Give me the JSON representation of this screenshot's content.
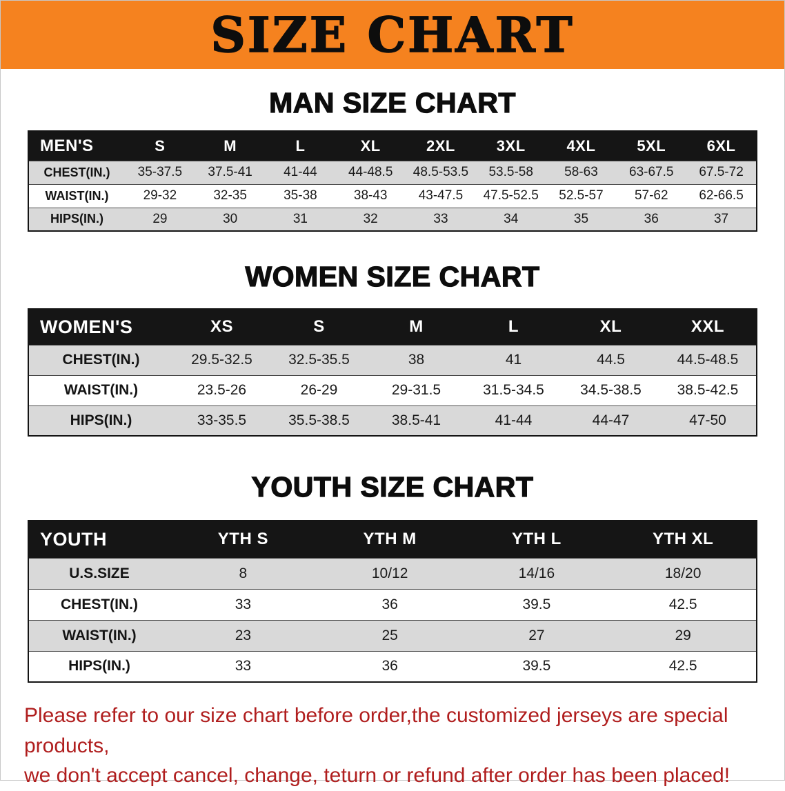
{
  "colors": {
    "banner_bg": "#F5821F",
    "header_bg": "#151515",
    "row_alt_bg": "#D9D9D9",
    "disclaimer_text": "#B01E1E"
  },
  "banner": {
    "title": "SIZE CHART"
  },
  "sections": [
    {
      "heading": "MAN SIZE CHART",
      "table": {
        "header": [
          "MEN'S",
          "S",
          "M",
          "L",
          "XL",
          "2XL",
          "3XL",
          "4XL",
          "5XL",
          "6XL"
        ],
        "rows": [
          {
            "label": "CHEST(IN.)",
            "values": [
              "35-37.5",
              "37.5-41",
              "41-44",
              "44-48.5",
              "48.5-53.5",
              "53.5-58",
              "58-63",
              "63-67.5",
              "67.5-72"
            ]
          },
          {
            "label": "WAIST(IN.)",
            "values": [
              "29-32",
              "32-35",
              "35-38",
              "38-43",
              "43-47.5",
              "47.5-52.5",
              "52.5-57",
              "57-62",
              "62-66.5"
            ]
          },
          {
            "label": "HIPS(IN.)",
            "values": [
              "29",
              "30",
              "31",
              "32",
              "33",
              "34",
              "35",
              "36",
              "37"
            ]
          }
        ]
      }
    },
    {
      "heading": "WOMEN SIZE CHART",
      "table": {
        "header": [
          "WOMEN'S",
          "XS",
          "S",
          "M",
          "L",
          "XL",
          "XXL"
        ],
        "rows": [
          {
            "label": "CHEST(IN.)",
            "values": [
              "29.5-32.5",
              "32.5-35.5",
              "38",
              "41",
              "44.5",
              "44.5-48.5"
            ]
          },
          {
            "label": "WAIST(IN.)",
            "values": [
              "23.5-26",
              "26-29",
              "29-31.5",
              "31.5-34.5",
              "34.5-38.5",
              "38.5-42.5"
            ]
          },
          {
            "label": "HIPS(IN.)",
            "values": [
              "33-35.5",
              "35.5-38.5",
              "38.5-41",
              "41-44",
              "44-47",
              "47-50"
            ]
          }
        ]
      }
    },
    {
      "heading": "YOUTH SIZE CHART",
      "table": {
        "header": [
          "YOUTH",
          "YTH S",
          "YTH M",
          "YTH L",
          "YTH XL"
        ],
        "rows": [
          {
            "label": "U.S.SIZE",
            "values": [
              "8",
              "10/12",
              "14/16",
              "18/20"
            ]
          },
          {
            "label": "CHEST(IN.)",
            "values": [
              "33",
              "36",
              "39.5",
              "42.5"
            ]
          },
          {
            "label": "WAIST(IN.)",
            "values": [
              "23",
              "25",
              "27",
              "29"
            ]
          },
          {
            "label": "HIPS(IN.)",
            "values": [
              "33",
              "36",
              "39.5",
              "42.5"
            ]
          }
        ]
      }
    }
  ],
  "disclaimer": {
    "line1": "Please refer to our size chart before order,the customized jerseys are special products,",
    "line2": "we don't accept cancel, change, teturn or refund after order has been placed!"
  }
}
